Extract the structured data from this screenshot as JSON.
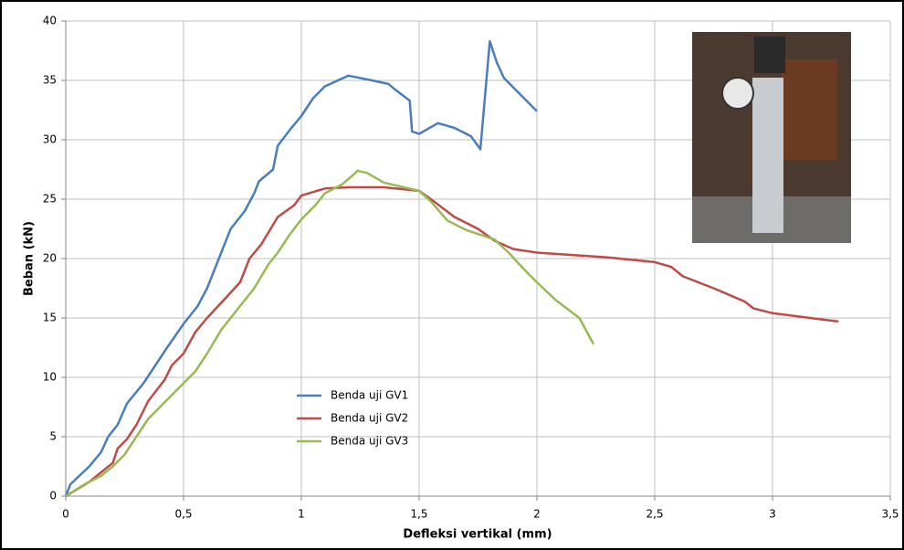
{
  "chart_data": {
    "type": "line",
    "xlabel": "Defleksi vertikal (mm)",
    "ylabel": "Beban (kN)",
    "xlim": [
      0,
      3.5
    ],
    "ylim": [
      0,
      40
    ],
    "xticks": [
      0,
      {
        "value": 0.5,
        "label": "0,5"
      },
      1,
      {
        "value": 1.5,
        "label": "1,5"
      },
      2,
      {
        "value": 2.5,
        "label": "2,5"
      },
      3,
      {
        "value": 3.5,
        "label": "3,5"
      }
    ],
    "yticks": [
      0,
      5,
      10,
      15,
      20,
      25,
      30,
      35,
      40
    ],
    "grid": true,
    "series": [
      {
        "name": "Benda uji GV1",
        "color": "#4a7ebb",
        "x": [
          0,
          0.02,
          0.1,
          0.15,
          0.18,
          0.22,
          0.26,
          0.33,
          0.38,
          0.43,
          0.5,
          0.56,
          0.6,
          0.65,
          0.7,
          0.76,
          0.8,
          0.82,
          0.88,
          0.9,
          0.95,
          1.0,
          1.05,
          1.1,
          1.2,
          1.3,
          1.37,
          1.4,
          1.46,
          1.47,
          1.5,
          1.58,
          1.65,
          1.72,
          1.76,
          1.8,
          1.83,
          1.86,
          1.93,
          2.0
        ],
        "values": [
          0,
          1,
          2.5,
          3.7,
          5,
          6,
          7.8,
          9.5,
          11,
          12.5,
          14.5,
          16,
          17.5,
          20,
          22.5,
          24,
          25.5,
          26.5,
          27.5,
          29.5,
          30.8,
          32,
          33.5,
          34.5,
          35.4,
          35,
          34.7,
          34.2,
          33.3,
          30.7,
          30.5,
          31.4,
          31,
          30.3,
          29.2,
          38.3,
          36.5,
          35.2,
          33.8,
          32.4
        ]
      },
      {
        "name": "Benda uji GV2",
        "color": "#be4b48",
        "x": [
          0,
          0.1,
          0.15,
          0.2,
          0.22,
          0.26,
          0.3,
          0.35,
          0.42,
          0.45,
          0.5,
          0.55,
          0.6,
          0.68,
          0.74,
          0.78,
          0.83,
          0.9,
          0.97,
          1.0,
          1.1,
          1.2,
          1.35,
          1.5,
          1.55,
          1.65,
          1.75,
          1.82,
          1.9,
          2.0,
          2.3,
          2.5,
          2.57,
          2.62,
          2.75,
          2.88,
          2.92,
          3.0,
          3.28
        ],
        "values": [
          0,
          1.2,
          2,
          2.8,
          4,
          4.8,
          6,
          8,
          9.8,
          11,
          12,
          13.8,
          15,
          16.7,
          18,
          20,
          21.2,
          23.5,
          24.5,
          25.3,
          25.9,
          26,
          26,
          25.7,
          25,
          23.5,
          22.5,
          21.5,
          20.8,
          20.5,
          20.1,
          19.7,
          19.3,
          18.5,
          17.5,
          16.4,
          15.8,
          15.4,
          14.7
        ]
      },
      {
        "name": "Benda uji GV3",
        "color": "#98b954",
        "x": [
          0,
          0.08,
          0.15,
          0.2,
          0.25,
          0.3,
          0.35,
          0.4,
          0.45,
          0.5,
          0.55,
          0.6,
          0.66,
          0.72,
          0.8,
          0.86,
          0.9,
          0.95,
          1.0,
          1.06,
          1.1,
          1.17,
          1.2,
          1.24,
          1.28,
          1.35,
          1.5,
          1.55,
          1.62,
          1.7,
          1.82,
          1.88,
          1.94,
          2.0,
          2.08,
          2.18,
          2.24
        ],
        "values": [
          0,
          1,
          1.7,
          2.5,
          3.5,
          5,
          6.5,
          7.5,
          8.5,
          9.5,
          10.5,
          12,
          14,
          15.5,
          17.5,
          19.5,
          20.5,
          22,
          23.3,
          24.5,
          25.5,
          26.2,
          26.7,
          27.4,
          27.2,
          26.4,
          25.7,
          24.8,
          23.2,
          22.4,
          21.6,
          20.5,
          19.2,
          18,
          16.5,
          15,
          12.8
        ]
      }
    ]
  }
}
